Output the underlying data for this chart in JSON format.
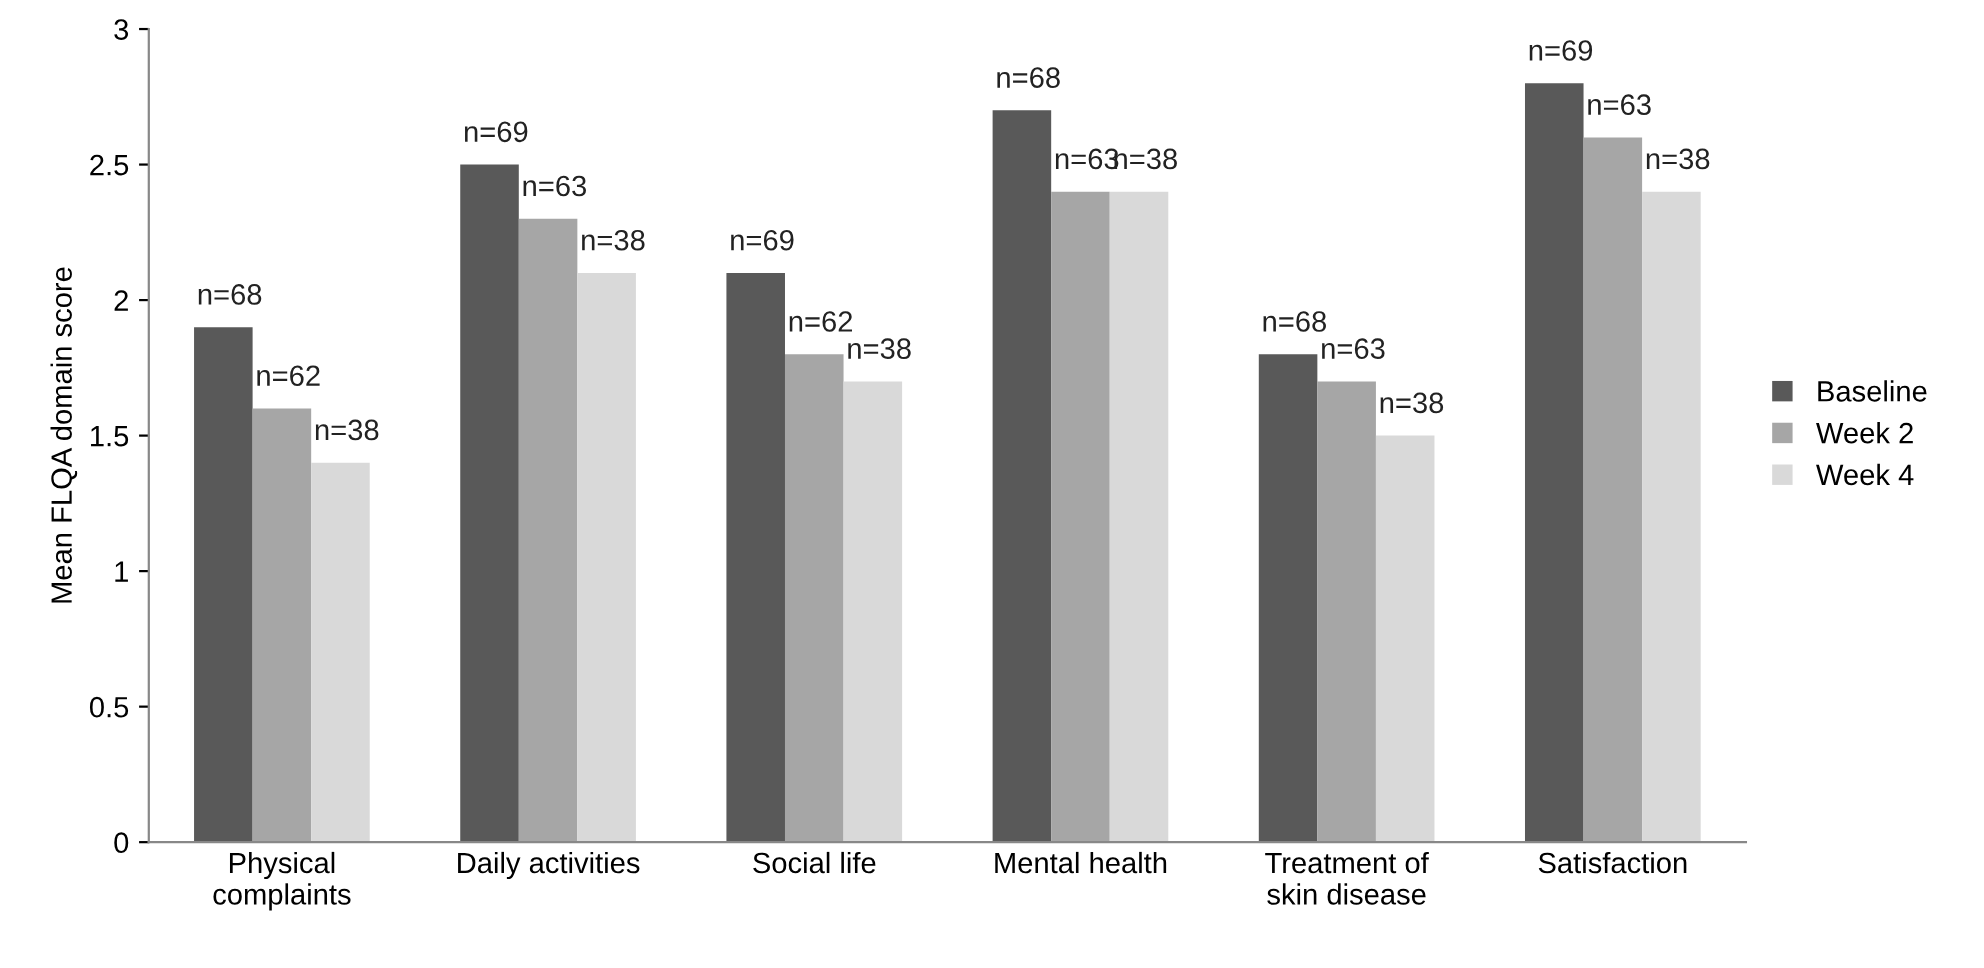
{
  "chart_data": {
    "type": "bar",
    "ylabel": "Mean FLQA domain score",
    "categories": [
      "Physical\ncomplaints",
      "Daily activities",
      "Social life",
      "Mental health",
      "Treatment of\nskin disease",
      "Satisfaction"
    ],
    "series": [
      {
        "name": "Baseline",
        "color": "#595959",
        "values": [
          1.9,
          2.5,
          2.1,
          2.7,
          1.8,
          2.8
        ]
      },
      {
        "name": "Week 2",
        "color": "#a6a6a6",
        "values": [
          1.6,
          2.3,
          1.8,
          2.4,
          1.7,
          2.6
        ]
      },
      {
        "name": "Week 4",
        "color": "#d9d9d9",
        "values": [
          1.4,
          2.1,
          1.7,
          2.4,
          1.5,
          2.4
        ]
      }
    ],
    "annotations": [
      "n=68",
      "n=69",
      "n=69",
      "n=68",
      "n=68",
      "n=69",
      "n=62",
      "n=63",
      "n=62",
      "n=63",
      "n=63",
      "n=63",
      "n=38",
      "n=38",
      "n=38",
      "n=38",
      "n=38",
      "n=38"
    ],
    "ylim": [
      0,
      3
    ],
    "yticks": [
      0,
      0.5,
      1,
      1.5,
      2,
      2.5,
      3
    ],
    "grid": false,
    "legend": "right"
  }
}
